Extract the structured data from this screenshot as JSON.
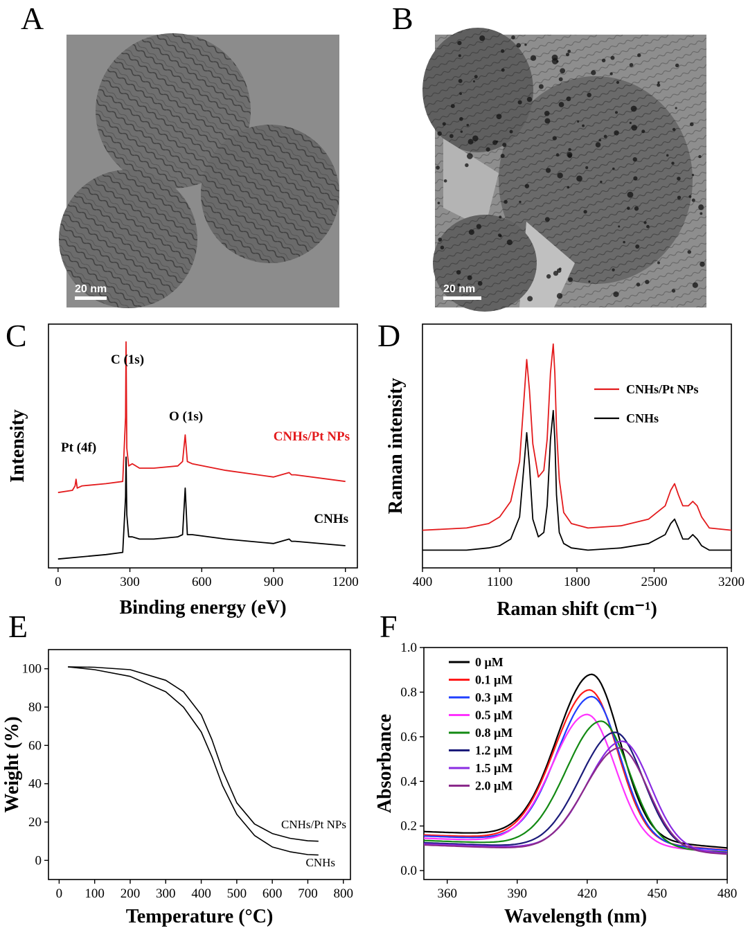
{
  "panels": {
    "A": {
      "label": "A",
      "scalebar": "20 nm"
    },
    "B": {
      "label": "B",
      "scalebar": "20 nm"
    }
  },
  "colors": {
    "red": "#e31a1c",
    "black": "#000000"
  },
  "chart_data": [
    {
      "panel": "C",
      "type": "line",
      "xlabel": "Binding energy (eV)",
      "ylabel": "Intensity",
      "xlim": [
        -40,
        1250
      ],
      "xticks": [
        0,
        300,
        600,
        900,
        1200
      ],
      "annotations": [
        "Pt (4f)",
        "C (1s)",
        "O (1s)"
      ],
      "series": [
        {
          "name": "CNHs/Pt NPs",
          "color": "#e31a1c",
          "x": [
            0,
            60,
            71,
            75,
            80,
            100,
            200,
            270,
            282,
            284,
            287,
            295,
            310,
            340,
            400,
            500,
            520,
            531,
            540,
            560,
            700,
            900,
            965,
            975,
            990,
            1200
          ],
          "y": [
            0.32,
            0.33,
            0.35,
            0.38,
            0.34,
            0.35,
            0.36,
            0.37,
            0.66,
            1.0,
            0.52,
            0.44,
            0.45,
            0.43,
            0.43,
            0.44,
            0.46,
            0.58,
            0.46,
            0.45,
            0.42,
            0.39,
            0.41,
            0.4,
            0.4,
            0.37
          ]
        },
        {
          "name": "CNHs",
          "color": "#000000",
          "x": [
            0,
            100,
            200,
            270,
            282,
            284,
            287,
            295,
            310,
            340,
            400,
            500,
            520,
            531,
            540,
            560,
            700,
            900,
            965,
            975,
            990,
            1200
          ],
          "y": [
            0.02,
            0.03,
            0.04,
            0.05,
            0.3,
            0.48,
            0.22,
            0.12,
            0.12,
            0.11,
            0.11,
            0.12,
            0.13,
            0.34,
            0.13,
            0.13,
            0.11,
            0.09,
            0.11,
            0.1,
            0.1,
            0.08
          ]
        }
      ]
    },
    {
      "panel": "D",
      "type": "line",
      "xlabel": "Raman shift (cm⁻¹)",
      "ylabel": "Raman intensity",
      "xlim": [
        400,
        3200
      ],
      "xticks": [
        400,
        1100,
        1800,
        2500,
        3200
      ],
      "legend": "top-right",
      "series": [
        {
          "name": "CNHs/Pt NPs",
          "color": "#e31a1c",
          "x": [
            400,
            800,
            1000,
            1100,
            1200,
            1280,
            1320,
            1345,
            1370,
            1400,
            1450,
            1500,
            1530,
            1560,
            1585,
            1600,
            1615,
            1640,
            1680,
            1750,
            1900,
            2200,
            2450,
            2600,
            2650,
            2685,
            2720,
            2760,
            2810,
            2850,
            2890,
            2930,
            3000,
            3200
          ],
          "y": [
            0.09,
            0.1,
            0.12,
            0.15,
            0.22,
            0.4,
            0.68,
            0.86,
            0.72,
            0.48,
            0.33,
            0.36,
            0.5,
            0.8,
            0.93,
            0.8,
            0.55,
            0.32,
            0.17,
            0.12,
            0.1,
            0.11,
            0.14,
            0.2,
            0.27,
            0.3,
            0.25,
            0.2,
            0.2,
            0.22,
            0.2,
            0.15,
            0.1,
            0.09
          ]
        },
        {
          "name": "CNHs",
          "color": "#000000",
          "x": [
            400,
            800,
            1000,
            1100,
            1200,
            1280,
            1320,
            1345,
            1370,
            1400,
            1450,
            1500,
            1530,
            1560,
            1585,
            1600,
            1615,
            1640,
            1680,
            1750,
            1900,
            2200,
            2450,
            2600,
            2650,
            2685,
            2720,
            2760,
            2810,
            2850,
            2890,
            2930,
            3000,
            3200
          ],
          "y": [
            0.0,
            0.0,
            0.01,
            0.02,
            0.05,
            0.15,
            0.38,
            0.53,
            0.38,
            0.14,
            0.06,
            0.08,
            0.2,
            0.5,
            0.63,
            0.5,
            0.25,
            0.08,
            0.03,
            0.01,
            0.0,
            0.01,
            0.03,
            0.07,
            0.12,
            0.14,
            0.1,
            0.05,
            0.05,
            0.07,
            0.05,
            0.02,
            0.0,
            0.0
          ]
        }
      ]
    },
    {
      "panel": "E",
      "type": "line",
      "xlabel": "Temperature (°C)",
      "ylabel": "Weight (%)",
      "xlim": [
        -30,
        820
      ],
      "ylim": [
        -10,
        110
      ],
      "xticks": [
        0,
        100,
        200,
        300,
        400,
        500,
        600,
        700,
        800
      ],
      "yticks": [
        0,
        20,
        40,
        60,
        80,
        100
      ],
      "series": [
        {
          "name": "CNHs/Pt NPs",
          "color": "#000000",
          "x": [
            25,
            100,
            200,
            300,
            350,
            400,
            430,
            460,
            500,
            550,
            600,
            650,
            700,
            730
          ],
          "y": [
            101,
            100.8,
            99.5,
            94,
            88,
            76,
            63,
            47,
            30,
            19,
            14,
            11.5,
            10.2,
            10
          ]
        },
        {
          "name": "CNHs",
          "color": "#000000",
          "x": [
            25,
            100,
            200,
            300,
            350,
            400,
            430,
            460,
            500,
            550,
            600,
            650,
            700,
            730
          ],
          "y": [
            101,
            99.5,
            96,
            88,
            80,
            67,
            54,
            39,
            24,
            13,
            7,
            4.5,
            3,
            2.8
          ]
        }
      ]
    },
    {
      "panel": "F",
      "type": "line",
      "xlabel": "Wavelength (nm)",
      "ylabel": "Absorbance",
      "xlim": [
        350,
        480
      ],
      "ylim": [
        -0.04,
        1.0
      ],
      "xticks": [
        360,
        390,
        420,
        450,
        480
      ],
      "yticks": [
        0.0,
        0.2,
        0.4,
        0.6,
        0.8,
        1.0
      ],
      "legend": "top-left",
      "series": [
        {
          "name": "0 μM",
          "color": "#000000",
          "peak": 422,
          "amax": 0.88,
          "base": 0.155
        },
        {
          "name": "0.1 μM",
          "color": "#ff1a1a",
          "peak": 421,
          "amax": 0.81,
          "base": 0.14
        },
        {
          "name": "0.3 μM",
          "color": "#1f3fff",
          "peak": 422,
          "amax": 0.78,
          "base": 0.135
        },
        {
          "name": "0.5 μM",
          "color": "#ff33ff",
          "peak": 420,
          "amax": 0.7,
          "base": 0.125
        },
        {
          "name": "0.8 μM",
          "color": "#138a13",
          "peak": 426,
          "amax": 0.67,
          "base": 0.115
        },
        {
          "name": "1.2 μM",
          "color": "#1b1b7a",
          "peak": 432,
          "amax": 0.62,
          "base": 0.105
        },
        {
          "name": "1.5 μM",
          "color": "#8a2be2",
          "peak": 435,
          "amax": 0.58,
          "base": 0.1
        },
        {
          "name": "2.0 μM",
          "color": "#8b2a8b",
          "peak": 434,
          "amax": 0.55,
          "base": 0.095
        }
      ]
    }
  ]
}
